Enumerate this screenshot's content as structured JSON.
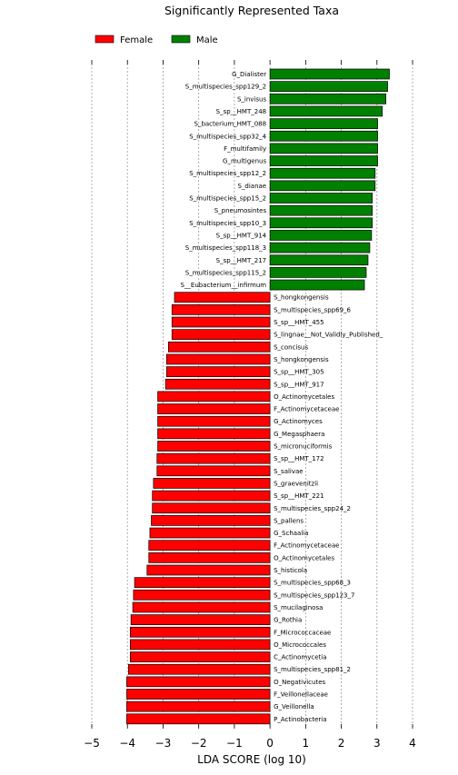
{
  "chart_data": {
    "type": "bar",
    "orientation": "horizontal",
    "title": "Significantly Represented Taxa",
    "xlabel": "LDA SCORE (log 10)",
    "xlim": [
      -5,
      4
    ],
    "xticks": [
      -5,
      -4,
      -3,
      -2,
      -1,
      0,
      1,
      2,
      3,
      4
    ],
    "xtick_labels": [
      "−5",
      "−4",
      "−3",
      "−2",
      "−1",
      "0",
      "1",
      "2",
      "3",
      "4"
    ],
    "grid": "vertical dashed",
    "legend_position": "top-left",
    "colors": {
      "Female": "#ff0000",
      "Male": "#008000"
    },
    "series": [
      {
        "name": "Female",
        "color": "#ff0000"
      },
      {
        "name": "Male",
        "color": "#008000"
      }
    ],
    "bars": [
      {
        "label": "G_Dialister",
        "value": 3.35,
        "group": "Male"
      },
      {
        "label": "S_multispecies_spp129_2",
        "value": 3.3,
        "group": "Male"
      },
      {
        "label": "S_invisus",
        "value": 3.25,
        "group": "Male"
      },
      {
        "label": "S_sp__HMT_248",
        "value": 3.15,
        "group": "Male"
      },
      {
        "label": "S_bacterium_HMT_088",
        "value": 3.02,
        "group": "Male"
      },
      {
        "label": "S_multispecies_spp32_4",
        "value": 3.02,
        "group": "Male"
      },
      {
        "label": "F_multifamily",
        "value": 3.02,
        "group": "Male"
      },
      {
        "label": "G_multigenus",
        "value": 3.02,
        "group": "Male"
      },
      {
        "label": "S_multispecies_spp12_2",
        "value": 2.95,
        "group": "Male"
      },
      {
        "label": "S_dianae",
        "value": 2.95,
        "group": "Male"
      },
      {
        "label": "S_multispecies_spp15_2",
        "value": 2.87,
        "group": "Male"
      },
      {
        "label": "S_pneumosintes",
        "value": 2.87,
        "group": "Male"
      },
      {
        "label": "S_multispecies_spp10_3",
        "value": 2.87,
        "group": "Male"
      },
      {
        "label": "S_sp__HMT_914",
        "value": 2.85,
        "group": "Male"
      },
      {
        "label": "S_multispecies_spp118_3",
        "value": 2.8,
        "group": "Male"
      },
      {
        "label": "S_sp__HMT_217",
        "value": 2.75,
        "group": "Male"
      },
      {
        "label": "S_multispecies_spp115_2",
        "value": 2.7,
        "group": "Male"
      },
      {
        "label": "S__Eubacterium__infirmum",
        "value": 2.65,
        "group": "Male"
      },
      {
        "label": "S_hongkongensis",
        "value": -2.68,
        "group": "Female"
      },
      {
        "label": "S_multispecies_spp69_6",
        "value": -2.75,
        "group": "Female"
      },
      {
        "label": "S_sp__HMT_455",
        "value": -2.75,
        "group": "Female"
      },
      {
        "label": "S_lingnae__Not_Validly_Published_",
        "value": -2.75,
        "group": "Female"
      },
      {
        "label": "S_concisus",
        "value": -2.85,
        "group": "Female"
      },
      {
        "label": "S_hongkongensis",
        "value": -2.9,
        "group": "Female"
      },
      {
        "label": "S_sp__HMT_305",
        "value": -2.9,
        "group": "Female"
      },
      {
        "label": "S_sp__HMT_917",
        "value": -2.93,
        "group": "Female"
      },
      {
        "label": "O_Actinomycetales",
        "value": -3.15,
        "group": "Female"
      },
      {
        "label": "F_Actinomycetaceae",
        "value": -3.15,
        "group": "Female"
      },
      {
        "label": "G_Actinomyces",
        "value": -3.15,
        "group": "Female"
      },
      {
        "label": "G_Megasphaera",
        "value": -3.15,
        "group": "Female"
      },
      {
        "label": "S_micronuciformis",
        "value": -3.15,
        "group": "Female"
      },
      {
        "label": "S_sp__HMT_172",
        "value": -3.17,
        "group": "Female"
      },
      {
        "label": "S_salivae",
        "value": -3.17,
        "group": "Female"
      },
      {
        "label": "S_graevenitzii",
        "value": -3.27,
        "group": "Female"
      },
      {
        "label": "S_sp__HMT_221",
        "value": -3.3,
        "group": "Female"
      },
      {
        "label": "S_multispecies_spp24_2",
        "value": -3.3,
        "group": "Female"
      },
      {
        "label": "S_pallens",
        "value": -3.33,
        "group": "Female"
      },
      {
        "label": "G_Schaalia",
        "value": -3.37,
        "group": "Female"
      },
      {
        "label": "F_Actinomycetaceae",
        "value": -3.4,
        "group": "Female"
      },
      {
        "label": "O_Actinomycetales",
        "value": -3.4,
        "group": "Female"
      },
      {
        "label": "S_histicola",
        "value": -3.45,
        "group": "Female"
      },
      {
        "label": "S_multispecies_spp68_3",
        "value": -3.8,
        "group": "Female"
      },
      {
        "label": "S_multispecies_spp123_7",
        "value": -3.83,
        "group": "Female"
      },
      {
        "label": "S_mucilaginosa",
        "value": -3.85,
        "group": "Female"
      },
      {
        "label": "G_Rothia",
        "value": -3.9,
        "group": "Female"
      },
      {
        "label": "F_Micrococcaceae",
        "value": -3.92,
        "group": "Female"
      },
      {
        "label": "O_Micrococcales",
        "value": -3.92,
        "group": "Female"
      },
      {
        "label": "C_Actinomycetia",
        "value": -3.92,
        "group": "Female"
      },
      {
        "label": "S_multispecies_spp81_2",
        "value": -3.97,
        "group": "Female"
      },
      {
        "label": "O_Negativicutes",
        "value": -4.02,
        "group": "Female"
      },
      {
        "label": "F_Veillonellaceae",
        "value": -4.02,
        "group": "Female"
      },
      {
        "label": "G_Veillonella",
        "value": -4.02,
        "group": "Female"
      },
      {
        "label": "P_Actinobacteria",
        "value": -4.02,
        "group": "Female"
      }
    ]
  }
}
